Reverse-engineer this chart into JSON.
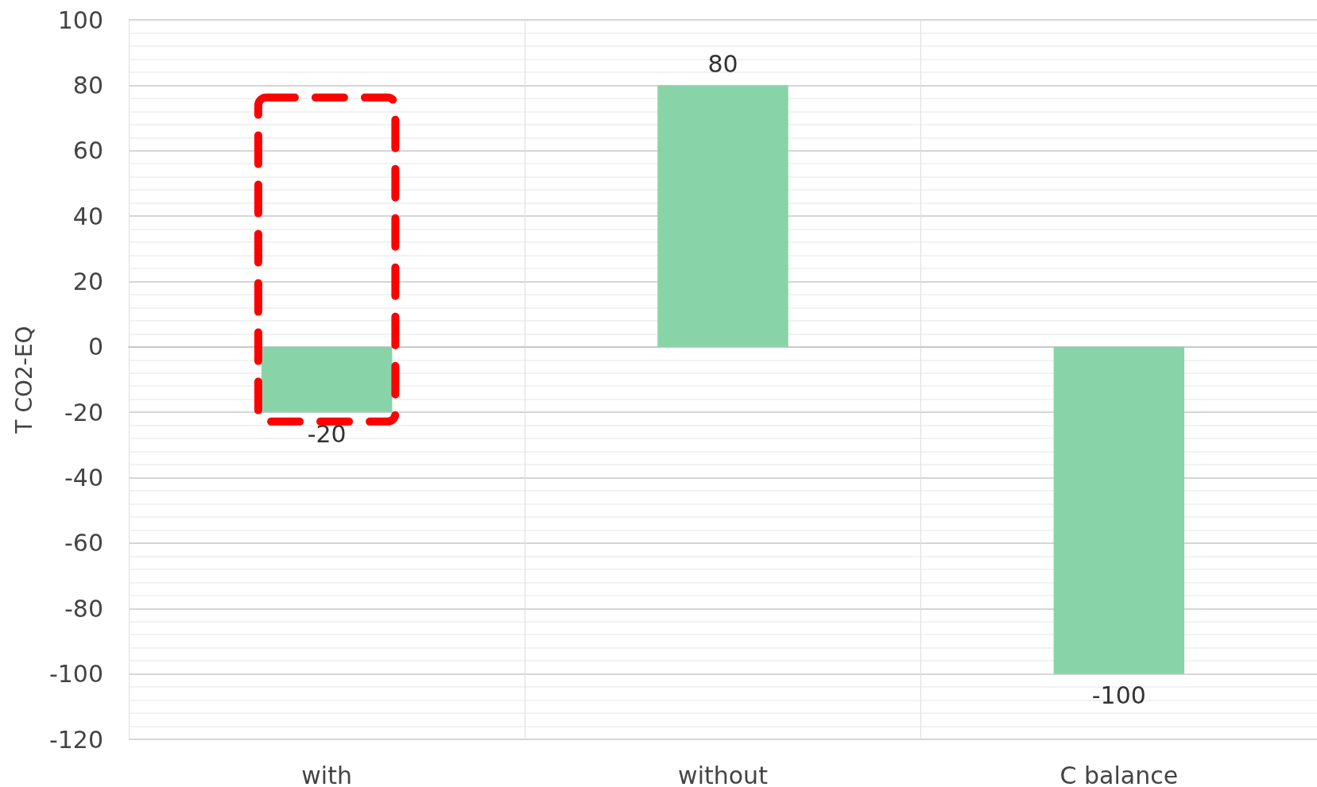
{
  "chart_data": {
    "type": "bar",
    "ylabel": "T CO2-EQ",
    "categories": [
      "with",
      "without",
      "C balance"
    ],
    "values": [
      -20,
      80,
      -100
    ],
    "color": "#88d4a8",
    "ylim": [
      -120,
      100
    ],
    "yticks": [
      -120,
      -100,
      -80,
      -60,
      -40,
      -20,
      0,
      20,
      40,
      60,
      80,
      100
    ],
    "grid": true,
    "data_labels": true
  }
}
